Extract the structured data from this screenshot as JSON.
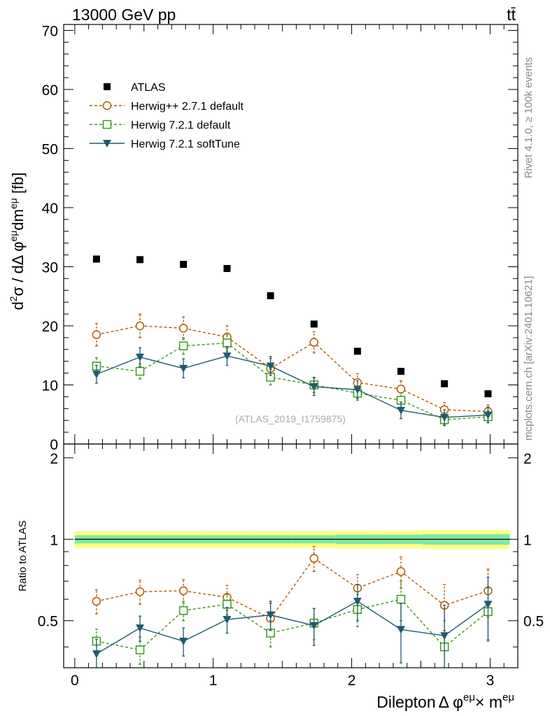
{
  "header": {
    "energy_label": "13000 GeV pp",
    "process_label": "tt̄"
  },
  "side_labels": {
    "rivet": "Rivet 4.1.0, ≥ 100k events",
    "source": "mcplots.cern.ch [arXiv:2401.10621]"
  },
  "watermark": "(ATLAS_2019_I1759875)",
  "colors": {
    "atlas": "#000000",
    "herwigpp": "#b35900",
    "herwig721": "#3a9a1a",
    "softtune": "#1f5a6e",
    "band_outer": "#ffff80",
    "band_inner": "#80e8a8"
  },
  "chart_data": [
    {
      "type": "scatter",
      "panel": "main",
      "ylabel": "d²σ / dΔ φ^eμ dm^eμ [fb]",
      "ylabel_parts": {
        "a": "d",
        "b": "2",
        "c": "σ / dΔ φ",
        "d": "eμ",
        "e": "dm",
        "f": "eμ",
        "g": " [fb]"
      },
      "xlim": [
        -0.08,
        3.2
      ],
      "ylim": [
        0,
        71
      ],
      "yticks": [
        0,
        10,
        20,
        30,
        40,
        50,
        60,
        70
      ],
      "ytick_labels": [
        "0",
        "10",
        "20",
        "30",
        "40",
        "50",
        "60",
        "70"
      ],
      "x": [
        0.157,
        0.471,
        0.785,
        1.1,
        1.414,
        1.728,
        2.042,
        2.356,
        2.67,
        2.985
      ],
      "series": [
        {
          "name": "ATLAS",
          "key": "atlas",
          "values": [
            31.3,
            31.2,
            30.4,
            29.7,
            25.1,
            20.3,
            15.7,
            12.3,
            10.2,
            8.5
          ],
          "errors": [
            0,
            0,
            0,
            0,
            0,
            0,
            0,
            0,
            0,
            0
          ]
        },
        {
          "name": "Herwig++ 2.7.1 default",
          "key": "herwigpp",
          "values": [
            18.5,
            20.0,
            19.6,
            18.1,
            12.8,
            17.2,
            10.4,
            9.3,
            5.8,
            5.5
          ],
          "errors": [
            1.9,
            2.0,
            1.9,
            1.9,
            1.7,
            1.8,
            1.5,
            1.4,
            1.2,
            1.1
          ]
        },
        {
          "name": "Herwig 7.2.1 default",
          "key": "herwig721",
          "values": [
            13.2,
            12.3,
            16.6,
            17.1,
            11.3,
            10.0,
            8.6,
            7.4,
            4.1,
            4.6
          ],
          "errors": [
            1.4,
            1.3,
            1.4,
            1.4,
            1.3,
            1.3,
            1.2,
            1.2,
            1.0,
            1.0
          ]
        },
        {
          "name": "Herwig 7.2.1 softTune",
          "key": "softtune",
          "values": [
            11.8,
            14.7,
            12.8,
            14.9,
            13.2,
            9.7,
            9.2,
            5.7,
            4.5,
            4.9
          ],
          "errors": [
            1.5,
            1.6,
            1.6,
            1.6,
            1.6,
            1.5,
            1.5,
            1.4,
            1.3,
            1.3
          ]
        }
      ]
    },
    {
      "type": "scatter",
      "panel": "ratio",
      "ylabel": "Ratio to ATLAS",
      "xlabel": "Dilepton Δ φ^eμ × m^eμ",
      "xlabel_parts": {
        "a": "Dilepton",
        "b": "Δ φ",
        "c": "eμ",
        "d": "× m",
        "e": "eμ"
      },
      "xlim": [
        -0.08,
        3.2
      ],
      "ylim": [
        0.335,
        2.25
      ],
      "yticks": [
        0.5,
        1,
        2
      ],
      "ytick_labels": [
        "0.5",
        "1",
        "2"
      ],
      "xticks": [
        0,
        1,
        2,
        3
      ],
      "xtick_labels": [
        "0",
        "1",
        "2",
        "3"
      ],
      "band_edges": [
        0,
        0.314,
        0.628,
        0.942,
        1.257,
        1.571,
        1.885,
        2.199,
        2.513,
        2.827,
        3.142
      ],
      "band_outer": [
        0.07,
        0.07,
        0.07,
        0.07,
        0.07,
        0.07,
        0.075,
        0.075,
        0.08,
        0.08
      ],
      "band_inner": [
        0.035,
        0.035,
        0.035,
        0.035,
        0.035,
        0.035,
        0.04,
        0.04,
        0.045,
        0.045
      ],
      "x": [
        0.157,
        0.471,
        0.785,
        1.1,
        1.414,
        1.728,
        2.042,
        2.356,
        2.67,
        2.985
      ],
      "series": [
        {
          "name": "Herwig++ 2.7.1 default",
          "key": "herwigpp",
          "values": [
            0.59,
            0.64,
            0.645,
            0.61,
            0.51,
            0.85,
            0.66,
            0.76,
            0.57,
            0.645
          ],
          "errors": [
            0.06,
            0.065,
            0.065,
            0.065,
            0.07,
            0.09,
            0.08,
            0.1,
            0.11,
            0.13
          ]
        },
        {
          "name": "Herwig 7.2.1 default",
          "key": "herwig721",
          "values": [
            0.42,
            0.39,
            0.545,
            0.575,
            0.45,
            0.49,
            0.55,
            0.6,
            0.4,
            0.54
          ],
          "errors": [
            0.045,
            0.045,
            0.045,
            0.05,
            0.05,
            0.065,
            0.075,
            0.1,
            0.1,
            0.12
          ]
        },
        {
          "name": "Herwig 7.2.1 softTune",
          "key": "softtune",
          "values": [
            0.377,
            0.47,
            0.42,
            0.505,
            0.525,
            0.48,
            0.59,
            0.464,
            0.44,
            0.575
          ],
          "errors": [
            0.05,
            0.05,
            0.05,
            0.055,
            0.065,
            0.075,
            0.09,
            0.115,
            0.13,
            0.15
          ]
        }
      ]
    }
  ]
}
